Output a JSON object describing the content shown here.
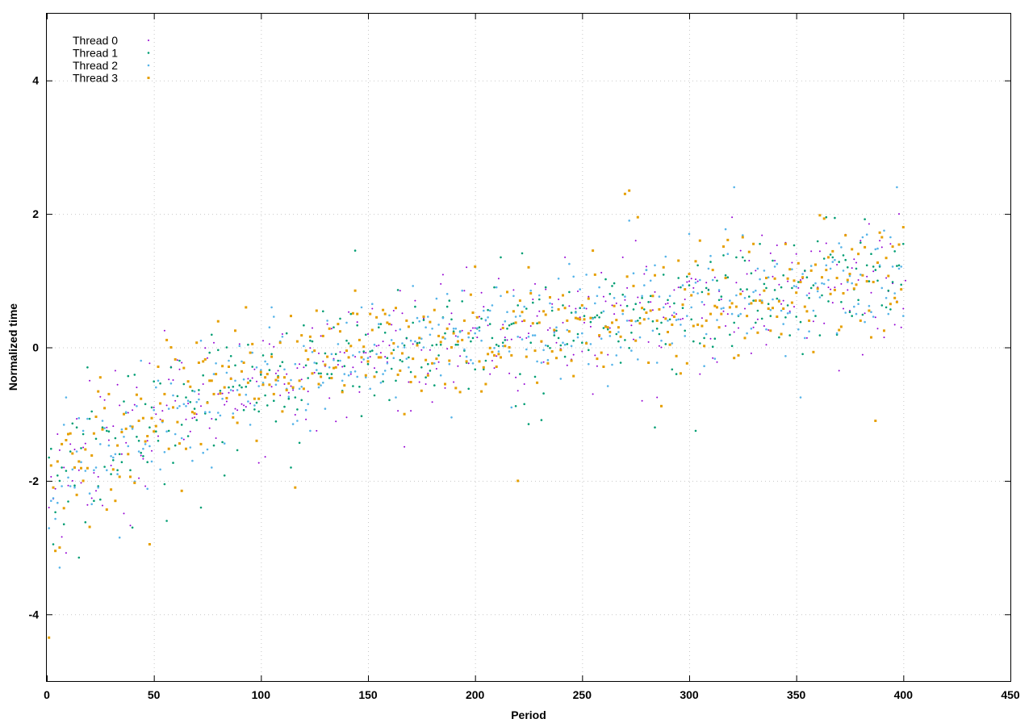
{
  "chart_data": {
    "type": "scatter",
    "title": "",
    "xlabel": "Period",
    "ylabel": "Normalized time",
    "xlim": [
      0,
      450
    ],
    "ylim": [
      -5,
      5
    ],
    "xticks": [
      0,
      50,
      100,
      150,
      200,
      250,
      300,
      350,
      400,
      450
    ],
    "yticks": [
      -4,
      -2,
      0,
      2,
      4
    ],
    "grid": true,
    "legend_position": "top-left",
    "point_count_per_series": 400,
    "series": [
      {
        "name": "Thread 0",
        "color": "#9400d3",
        "marker": "dot",
        "points": [
          [
            1,
            -2.4
          ],
          [
            5,
            -1.3
          ],
          [
            12,
            -2.0
          ],
          [
            20,
            -0.5
          ],
          [
            28,
            -1.2
          ],
          [
            35,
            -1.6
          ],
          [
            42,
            -0.6
          ],
          [
            50,
            -0.9
          ],
          [
            55,
            0.25
          ],
          [
            60,
            -0.8
          ],
          [
            70,
            -1.0
          ],
          [
            80,
            -0.7
          ],
          [
            90,
            0.05
          ],
          [
            100,
            -0.4
          ],
          [
            110,
            0.2
          ],
          [
            120,
            -0.3
          ],
          [
            126,
            -1.25
          ],
          [
            140,
            -1.05
          ],
          [
            150,
            0.2
          ],
          [
            162,
            0.55
          ],
          [
            170,
            -0.95
          ],
          [
            184,
            0.95
          ],
          [
            195,
            0.85
          ],
          [
            205,
            0.4
          ],
          [
            220,
            -0.65
          ],
          [
            228,
            0.95
          ],
          [
            242,
            1.35
          ],
          [
            255,
            -0.7
          ],
          [
            265,
            0.5
          ],
          [
            275,
            1.6
          ],
          [
            285,
            -0.75
          ],
          [
            295,
            0.9
          ],
          [
            305,
            -0.4
          ],
          [
            312,
            1.05
          ],
          [
            320,
            1.95
          ],
          [
            330,
            0.3
          ],
          [
            340,
            1.3
          ],
          [
            350,
            1.4
          ],
          [
            360,
            0.9
          ],
          [
            370,
            -0.35
          ],
          [
            380,
            1.6
          ],
          [
            390,
            1.5
          ],
          [
            398,
            2.0
          ],
          [
            401,
            1.0
          ]
        ]
      },
      {
        "name": "Thread 1",
        "color": "#009e73",
        "marker": "dot",
        "points": [
          [
            1,
            -1.65
          ],
          [
            3,
            -2.95
          ],
          [
            7,
            -1.8
          ],
          [
            15,
            -3.15
          ],
          [
            22,
            -2.3
          ],
          [
            30,
            -1.9
          ],
          [
            40,
            -2.7
          ],
          [
            48,
            -1.2
          ],
          [
            56,
            -2.6
          ],
          [
            62,
            -0.2
          ],
          [
            72,
            -2.4
          ],
          [
            85,
            -0.6
          ],
          [
            95,
            -0.5
          ],
          [
            105,
            -0.1
          ],
          [
            114,
            -1.8
          ],
          [
            123,
            0.1
          ],
          [
            133,
            -0.4
          ],
          [
            144,
            1.45
          ],
          [
            155,
            0.3
          ],
          [
            163,
            -0.5
          ],
          [
            175,
            -0.3
          ],
          [
            185,
            0.45
          ],
          [
            195,
            -0.05
          ],
          [
            205,
            -0.2
          ],
          [
            212,
            1.35
          ],
          [
            223,
            -0.85
          ],
          [
            233,
            0.9
          ],
          [
            246,
            0.1
          ],
          [
            258,
            0.45
          ],
          [
            266,
            0.2
          ],
          [
            276,
            0.4
          ],
          [
            284,
            -1.2
          ],
          [
            294,
            -0.4
          ],
          [
            303,
            -1.25
          ],
          [
            313,
            1.0
          ],
          [
            322,
            1.35
          ],
          [
            333,
            1.55
          ],
          [
            345,
            0.45
          ],
          [
            355,
            1.05
          ],
          [
            364,
            1.95
          ],
          [
            374,
            1.2
          ],
          [
            385,
            1.4
          ],
          [
            393,
            0.85
          ],
          [
            400,
            1.55
          ]
        ]
      },
      {
        "name": "Thread 2",
        "color": "#56b4e9",
        "marker": "dot",
        "points": [
          [
            2,
            -2.3
          ],
          [
            6,
            -3.3
          ],
          [
            9,
            -0.75
          ],
          [
            18,
            -1.85
          ],
          [
            26,
            -1.1
          ],
          [
            34,
            -2.85
          ],
          [
            44,
            -0.2
          ],
          [
            52,
            -0.5
          ],
          [
            60,
            -1.3
          ],
          [
            68,
            -1.7
          ],
          [
            77,
            -1.8
          ],
          [
            88,
            -0.5
          ],
          [
            98,
            -0.3
          ],
          [
            108,
            -0.5
          ],
          [
            117,
            -1.1
          ],
          [
            127,
            -0.6
          ],
          [
            137,
            -0.2
          ],
          [
            147,
            0.6
          ],
          [
            157,
            -0.4
          ],
          [
            167,
            0.0
          ],
          [
            177,
            0.3
          ],
          [
            189,
            -1.05
          ],
          [
            197,
            0.15
          ],
          [
            207,
            0.55
          ],
          [
            217,
            -0.9
          ],
          [
            226,
            0.85
          ],
          [
            236,
            0.6
          ],
          [
            248,
            0.15
          ],
          [
            258,
            0.9
          ],
          [
            268,
            0.0
          ],
          [
            272,
            1.9
          ],
          [
            282,
            1.0
          ],
          [
            290,
            0.4
          ],
          [
            300,
            1.7
          ],
          [
            308,
            0.2
          ],
          [
            318,
            1.4
          ],
          [
            321,
            2.4
          ],
          [
            331,
            0.85
          ],
          [
            341,
            1.25
          ],
          [
            352,
            -0.75
          ],
          [
            361,
            0.75
          ],
          [
            371,
            1.5
          ],
          [
            381,
            1.65
          ],
          [
            391,
            1.75
          ],
          [
            397,
            2.4
          ]
        ]
      },
      {
        "name": "Thread 3",
        "color": "#e69f00",
        "marker": "square",
        "points": [
          [
            1,
            -4.35
          ],
          [
            3,
            -2.1
          ],
          [
            4,
            -3.05
          ],
          [
            6,
            -3.0
          ],
          [
            10,
            -1.3
          ],
          [
            17,
            -2.0
          ],
          [
            25,
            -0.45
          ],
          [
            32,
            -2.3
          ],
          [
            38,
            -1.6
          ],
          [
            48,
            -2.95
          ],
          [
            54,
            -1.1
          ],
          [
            58,
            0.0
          ],
          [
            63,
            -2.15
          ],
          [
            72,
            -1.45
          ],
          [
            78,
            -0.7
          ],
          [
            88,
            0.25
          ],
          [
            98,
            -1.4
          ],
          [
            108,
            -0.45
          ],
          [
            116,
            -2.1
          ],
          [
            126,
            0.55
          ],
          [
            136,
            0.35
          ],
          [
            145,
            0.5
          ],
          [
            155,
            -0.15
          ],
          [
            165,
            -0.35
          ],
          [
            175,
            -0.65
          ],
          [
            185,
            0.15
          ],
          [
            195,
            0.4
          ],
          [
            205,
            -0.55
          ],
          [
            216,
            0.0
          ],
          [
            220,
            -2.0
          ],
          [
            225,
            1.2
          ],
          [
            235,
            0.75
          ],
          [
            245,
            -0.2
          ],
          [
            255,
            1.45
          ],
          [
            262,
            0.3
          ],
          [
            270,
            2.3
          ],
          [
            272,
            2.35
          ],
          [
            276,
            1.95
          ],
          [
            285,
            0.4
          ],
          [
            295,
            1.3
          ],
          [
            305,
            1.6
          ],
          [
            315,
            0.5
          ],
          [
            325,
            1.65
          ],
          [
            335,
            0.85
          ],
          [
            345,
            1.55
          ],
          [
            356,
            0.4
          ],
          [
            365,
            1.35
          ],
          [
            375,
            1.1
          ],
          [
            387,
            -1.1
          ],
          [
            394,
            0.65
          ],
          [
            400,
            1.8
          ]
        ]
      }
    ]
  }
}
